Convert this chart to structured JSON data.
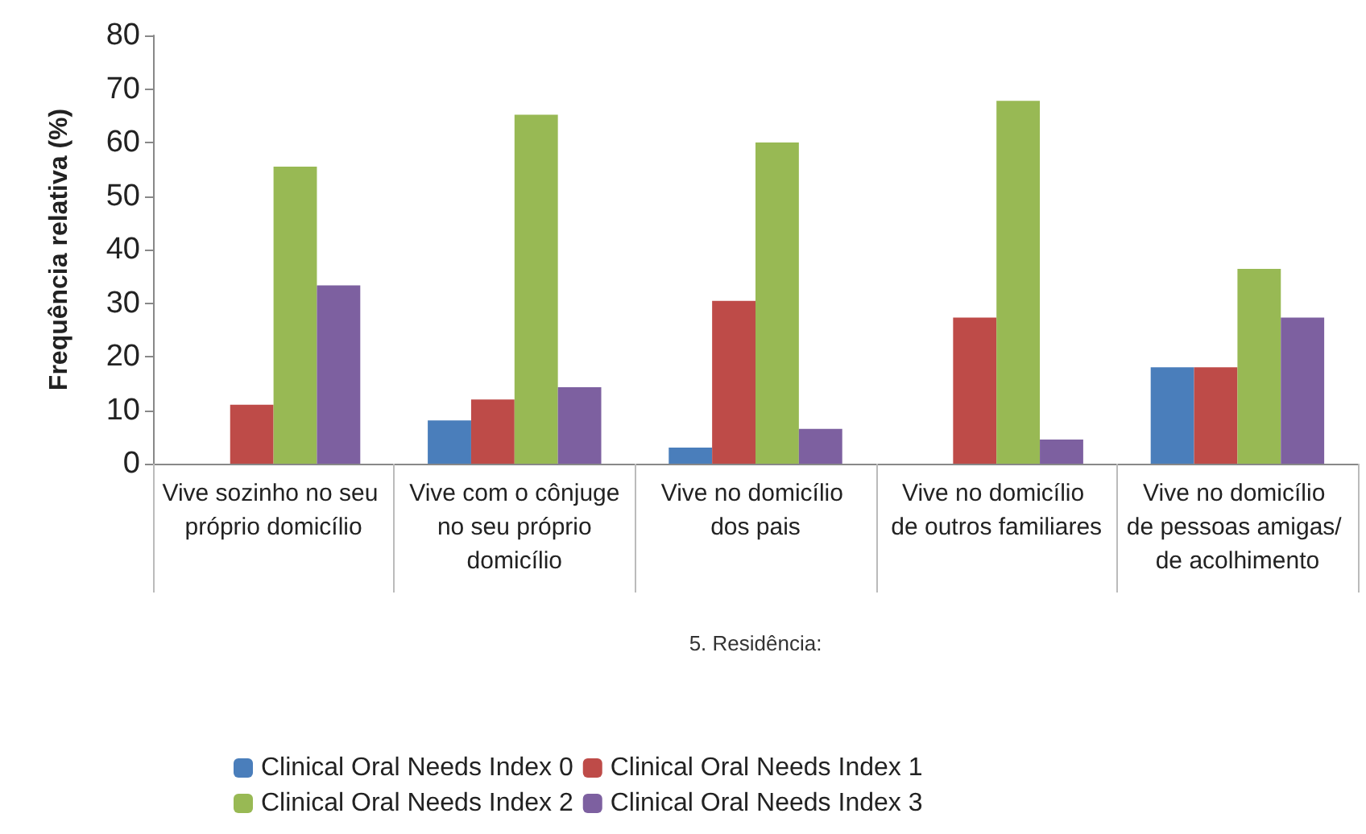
{
  "chart_data": {
    "type": "bar",
    "xlabel": "5. Residência:",
    "ylabel": "Frequência relativa (%)",
    "categories": [
      "Vive sozinho no seu próprio domicílio",
      "Vive com o cônjuge no seu próprio domicílio",
      "Vive no domicílio dos pais",
      "Vive no domicílio de outros familiares",
      "Vive no domicílio de pessoas amigas/ de acolhimento"
    ],
    "series": [
      {
        "name": "Clinical Oral Needs Index 0",
        "color": "#4a7ebb",
        "values": [
          0,
          8.1,
          3,
          0,
          18
        ]
      },
      {
        "name": "Clinical Oral Needs Index 1",
        "color": "#be4b48",
        "values": [
          11,
          12,
          30.4,
          27.3,
          18
        ]
      },
      {
        "name": "Clinical Oral Needs Index 2",
        "color": "#98b954",
        "values": [
          55.5,
          65.2,
          60,
          67.8,
          36.4
        ]
      },
      {
        "name": "Clinical Oral Needs Index 3",
        "color": "#7d60a0",
        "values": [
          33.3,
          14.3,
          6.5,
          4.5,
          27.3
        ]
      }
    ],
    "ylim": [
      0,
      80
    ],
    "yticks": [
      0,
      10,
      20,
      30,
      40,
      50,
      60,
      70,
      80
    ],
    "grid": false,
    "legend": "bottom"
  }
}
